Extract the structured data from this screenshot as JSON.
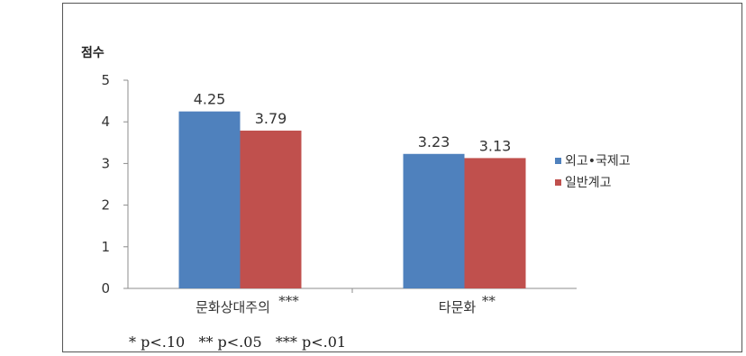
{
  "chart_data": {
    "type": "bar",
    "ylabel": "점수",
    "ylim": [
      0,
      5
    ],
    "yticks": [
      "0",
      "1",
      "2",
      "3",
      "4",
      "5"
    ],
    "categories": [
      {
        "label": "문화상대주의",
        "sig": "***"
      },
      {
        "label": "타문화",
        "sig": "**"
      }
    ],
    "series": [
      {
        "name": "외고•국제고",
        "color": "#4F81BD",
        "values": [
          4.25,
          3.23
        ],
        "labels": [
          "4.25",
          "3.23"
        ]
      },
      {
        "name": "일반계고",
        "color": "#C0504D",
        "values": [
          3.79,
          3.13
        ],
        "labels": [
          "3.79",
          "3.13"
        ]
      }
    ],
    "legend_position": "right",
    "grid": false
  },
  "footnote": "* p<.10   ** p<.05   *** p<.01"
}
